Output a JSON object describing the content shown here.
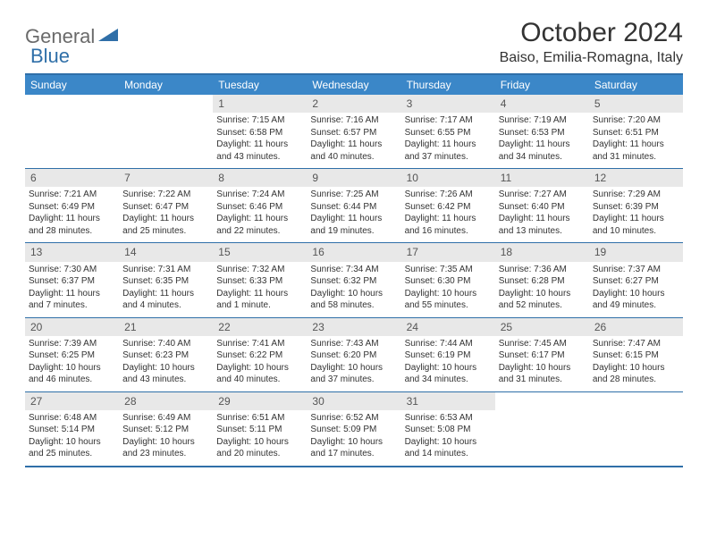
{
  "logo": {
    "part1": "General",
    "part2": "Blue"
  },
  "title": "October 2024",
  "location": "Baiso, Emilia-Romagna, Italy",
  "colors": {
    "headerBg": "#3b87c8",
    "borderBlue": "#2f6fa8",
    "dayNumBg": "#e8e8e8",
    "logoGray": "#6a6a6a",
    "logoBlue": "#2f6fa8"
  },
  "dayNames": [
    "Sunday",
    "Monday",
    "Tuesday",
    "Wednesday",
    "Thursday",
    "Friday",
    "Saturday"
  ],
  "weeks": [
    [
      {
        "empty": true
      },
      {
        "empty": true
      },
      {
        "num": "1",
        "sunrise": "Sunrise: 7:15 AM",
        "sunset": "Sunset: 6:58 PM",
        "daylight": "Daylight: 11 hours and 43 minutes."
      },
      {
        "num": "2",
        "sunrise": "Sunrise: 7:16 AM",
        "sunset": "Sunset: 6:57 PM",
        "daylight": "Daylight: 11 hours and 40 minutes."
      },
      {
        "num": "3",
        "sunrise": "Sunrise: 7:17 AM",
        "sunset": "Sunset: 6:55 PM",
        "daylight": "Daylight: 11 hours and 37 minutes."
      },
      {
        "num": "4",
        "sunrise": "Sunrise: 7:19 AM",
        "sunset": "Sunset: 6:53 PM",
        "daylight": "Daylight: 11 hours and 34 minutes."
      },
      {
        "num": "5",
        "sunrise": "Sunrise: 7:20 AM",
        "sunset": "Sunset: 6:51 PM",
        "daylight": "Daylight: 11 hours and 31 minutes."
      }
    ],
    [
      {
        "num": "6",
        "sunrise": "Sunrise: 7:21 AM",
        "sunset": "Sunset: 6:49 PM",
        "daylight": "Daylight: 11 hours and 28 minutes."
      },
      {
        "num": "7",
        "sunrise": "Sunrise: 7:22 AM",
        "sunset": "Sunset: 6:47 PM",
        "daylight": "Daylight: 11 hours and 25 minutes."
      },
      {
        "num": "8",
        "sunrise": "Sunrise: 7:24 AM",
        "sunset": "Sunset: 6:46 PM",
        "daylight": "Daylight: 11 hours and 22 minutes."
      },
      {
        "num": "9",
        "sunrise": "Sunrise: 7:25 AM",
        "sunset": "Sunset: 6:44 PM",
        "daylight": "Daylight: 11 hours and 19 minutes."
      },
      {
        "num": "10",
        "sunrise": "Sunrise: 7:26 AM",
        "sunset": "Sunset: 6:42 PM",
        "daylight": "Daylight: 11 hours and 16 minutes."
      },
      {
        "num": "11",
        "sunrise": "Sunrise: 7:27 AM",
        "sunset": "Sunset: 6:40 PM",
        "daylight": "Daylight: 11 hours and 13 minutes."
      },
      {
        "num": "12",
        "sunrise": "Sunrise: 7:29 AM",
        "sunset": "Sunset: 6:39 PM",
        "daylight": "Daylight: 11 hours and 10 minutes."
      }
    ],
    [
      {
        "num": "13",
        "sunrise": "Sunrise: 7:30 AM",
        "sunset": "Sunset: 6:37 PM",
        "daylight": "Daylight: 11 hours and 7 minutes."
      },
      {
        "num": "14",
        "sunrise": "Sunrise: 7:31 AM",
        "sunset": "Sunset: 6:35 PM",
        "daylight": "Daylight: 11 hours and 4 minutes."
      },
      {
        "num": "15",
        "sunrise": "Sunrise: 7:32 AM",
        "sunset": "Sunset: 6:33 PM",
        "daylight": "Daylight: 11 hours and 1 minute."
      },
      {
        "num": "16",
        "sunrise": "Sunrise: 7:34 AM",
        "sunset": "Sunset: 6:32 PM",
        "daylight": "Daylight: 10 hours and 58 minutes."
      },
      {
        "num": "17",
        "sunrise": "Sunrise: 7:35 AM",
        "sunset": "Sunset: 6:30 PM",
        "daylight": "Daylight: 10 hours and 55 minutes."
      },
      {
        "num": "18",
        "sunrise": "Sunrise: 7:36 AM",
        "sunset": "Sunset: 6:28 PM",
        "daylight": "Daylight: 10 hours and 52 minutes."
      },
      {
        "num": "19",
        "sunrise": "Sunrise: 7:37 AM",
        "sunset": "Sunset: 6:27 PM",
        "daylight": "Daylight: 10 hours and 49 minutes."
      }
    ],
    [
      {
        "num": "20",
        "sunrise": "Sunrise: 7:39 AM",
        "sunset": "Sunset: 6:25 PM",
        "daylight": "Daylight: 10 hours and 46 minutes."
      },
      {
        "num": "21",
        "sunrise": "Sunrise: 7:40 AM",
        "sunset": "Sunset: 6:23 PM",
        "daylight": "Daylight: 10 hours and 43 minutes."
      },
      {
        "num": "22",
        "sunrise": "Sunrise: 7:41 AM",
        "sunset": "Sunset: 6:22 PM",
        "daylight": "Daylight: 10 hours and 40 minutes."
      },
      {
        "num": "23",
        "sunrise": "Sunrise: 7:43 AM",
        "sunset": "Sunset: 6:20 PM",
        "daylight": "Daylight: 10 hours and 37 minutes."
      },
      {
        "num": "24",
        "sunrise": "Sunrise: 7:44 AM",
        "sunset": "Sunset: 6:19 PM",
        "daylight": "Daylight: 10 hours and 34 minutes."
      },
      {
        "num": "25",
        "sunrise": "Sunrise: 7:45 AM",
        "sunset": "Sunset: 6:17 PM",
        "daylight": "Daylight: 10 hours and 31 minutes."
      },
      {
        "num": "26",
        "sunrise": "Sunrise: 7:47 AM",
        "sunset": "Sunset: 6:15 PM",
        "daylight": "Daylight: 10 hours and 28 minutes."
      }
    ],
    [
      {
        "num": "27",
        "sunrise": "Sunrise: 6:48 AM",
        "sunset": "Sunset: 5:14 PM",
        "daylight": "Daylight: 10 hours and 25 minutes."
      },
      {
        "num": "28",
        "sunrise": "Sunrise: 6:49 AM",
        "sunset": "Sunset: 5:12 PM",
        "daylight": "Daylight: 10 hours and 23 minutes."
      },
      {
        "num": "29",
        "sunrise": "Sunrise: 6:51 AM",
        "sunset": "Sunset: 5:11 PM",
        "daylight": "Daylight: 10 hours and 20 minutes."
      },
      {
        "num": "30",
        "sunrise": "Sunrise: 6:52 AM",
        "sunset": "Sunset: 5:09 PM",
        "daylight": "Daylight: 10 hours and 17 minutes."
      },
      {
        "num": "31",
        "sunrise": "Sunrise: 6:53 AM",
        "sunset": "Sunset: 5:08 PM",
        "daylight": "Daylight: 10 hours and 14 minutes."
      },
      {
        "empty": true
      },
      {
        "empty": true
      }
    ]
  ]
}
